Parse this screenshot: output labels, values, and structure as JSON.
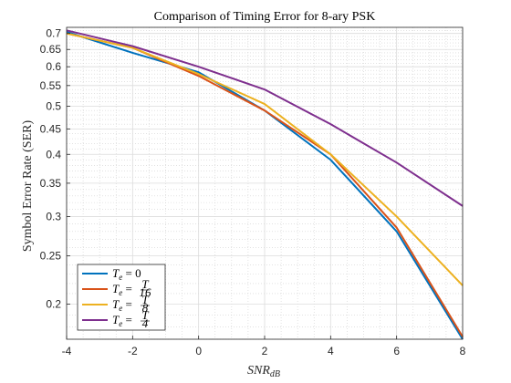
{
  "chart_data": {
    "type": "line",
    "title": "Comparison of Timing Error for 8-ary PSK",
    "xlabel": "SNR",
    "xlabel_sub": "dB",
    "ylabel": "Symbol Error Rate (SER)",
    "xscale": "linear",
    "yscale": "log",
    "xlim": [
      -4,
      8
    ],
    "ylim": [
      0.17,
      0.72
    ],
    "grid": true,
    "minor_grid": true,
    "legend_position": "bottom-left",
    "x": [
      -4,
      -2,
      0,
      2,
      4,
      6,
      8
    ],
    "xticks": [
      "-4",
      "-2",
      "0",
      "2",
      "4",
      "6",
      "8"
    ],
    "yticks": [
      {
        "value": 0.2,
        "label": "0.2"
      },
      {
        "value": 0.25,
        "label": "0.25"
      },
      {
        "value": 0.3,
        "label": "0.3"
      },
      {
        "value": 0.35,
        "label": "0.35"
      },
      {
        "value": 0.4,
        "label": "0.4"
      },
      {
        "value": 0.45,
        "label": "0.45"
      },
      {
        "value": 0.5,
        "label": "0.5"
      },
      {
        "value": 0.55,
        "label": "0.55"
      },
      {
        "value": 0.6,
        "label": "0.6"
      },
      {
        "value": 0.65,
        "label": "0.65"
      },
      {
        "value": 0.7,
        "label": "0.7"
      }
    ],
    "series": [
      {
        "name": "Te = 0",
        "legend": {
          "base": "T",
          "sub": "e",
          "rhs": "0"
        },
        "color": "#0072BD",
        "values": [
          0.705,
          0.64,
          0.585,
          0.49,
          0.39,
          0.28,
          0.17
        ]
      },
      {
        "name": "Te = T/16",
        "legend": {
          "base": "T",
          "sub": "e",
          "num": "T",
          "den": "16"
        },
        "color": "#D95319",
        "values": [
          0.7,
          0.655,
          0.575,
          0.49,
          0.4,
          0.285,
          0.172
        ]
      },
      {
        "name": "Te = T/8",
        "legend": {
          "base": "T",
          "sub": "e",
          "num": "T",
          "den": "8"
        },
        "color": "#EDB120",
        "values": [
          0.7,
          0.655,
          0.58,
          0.505,
          0.4,
          0.3,
          0.218
        ]
      },
      {
        "name": "Te = T/4",
        "legend": {
          "base": "T",
          "sub": "e",
          "num": "T",
          "den": "4"
        },
        "color": "#7E2F8E",
        "values": [
          0.71,
          0.66,
          0.6,
          0.54,
          0.46,
          0.385,
          0.315
        ]
      }
    ]
  }
}
